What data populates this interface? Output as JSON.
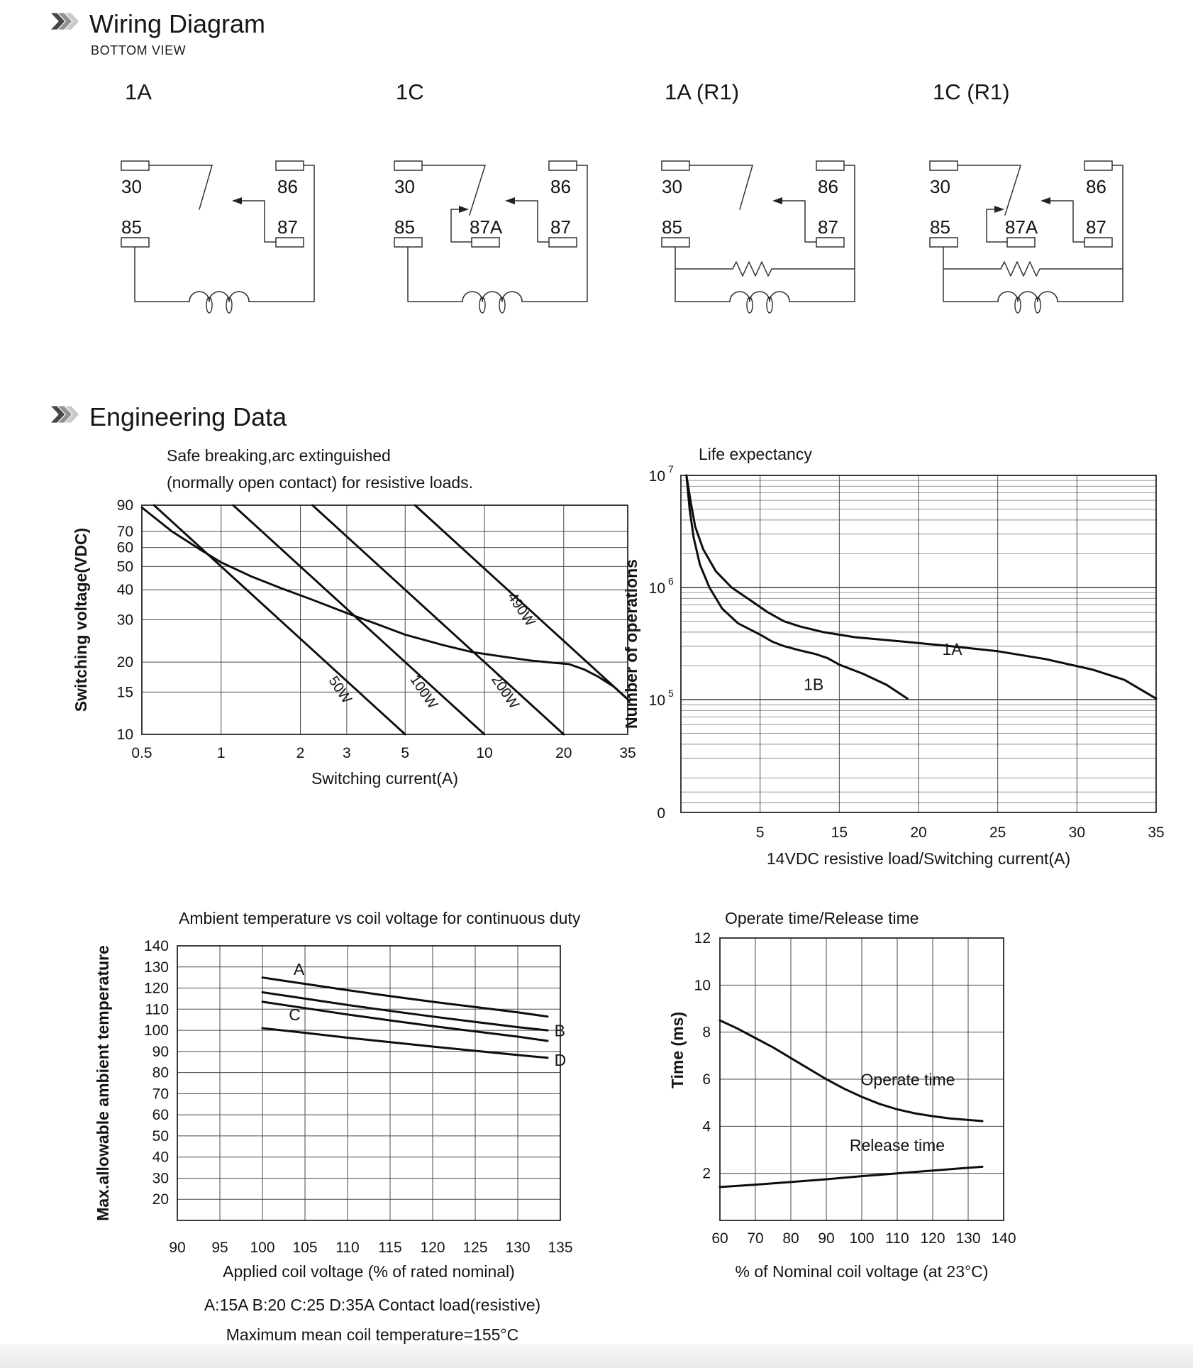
{
  "page": {
    "wiring_section": {
      "title": "Wiring Diagram",
      "subtitle": "BOTTOM VIEW"
    },
    "engineering_section": {
      "title": "Engineering Data"
    }
  },
  "wiring_diagrams": [
    {
      "label": "1A",
      "terminals": {
        "top_left": "30",
        "top_right": "86",
        "bottom_left": "85",
        "bottom_right": "87"
      },
      "middle_terminal": "",
      "has_resistor": false
    },
    {
      "label": "1C",
      "terminals": {
        "top_left": "30",
        "top_right": "86",
        "bottom_left": "85",
        "bottom_right": "87"
      },
      "middle_terminal": "87A",
      "has_resistor": false
    },
    {
      "label": "1A (R1)",
      "terminals": {
        "top_left": "30",
        "top_right": "86",
        "bottom_left": "85",
        "bottom_right": "87"
      },
      "middle_terminal": "",
      "has_resistor": true
    },
    {
      "label": "1C (R1)",
      "terminals": {
        "top_left": "30",
        "top_right": "86",
        "bottom_left": "85",
        "bottom_right": "87"
      },
      "middle_terminal": "87A",
      "has_resistor": true
    }
  ],
  "chart_data": [
    {
      "id": "safe-breaking",
      "type": "line",
      "title_lines": [
        "Safe breaking,arc extinguished",
        "(normally open contact) for resistive loads."
      ],
      "xlabel": "Switching current(A)",
      "ylabel": "Switching voltage(VDC)",
      "xscale": "log",
      "yscale": "log",
      "xlim": [
        0.5,
        35
      ],
      "ylim": [
        10,
        90
      ],
      "xticks": [
        0.5,
        1,
        2,
        3,
        5,
        10,
        20,
        35
      ],
      "yticks": [
        10,
        15,
        20,
        30,
        40,
        50,
        60,
        70,
        90
      ],
      "series": [
        {
          "name": "50W",
          "points": [
            [
              0.556,
              90
            ],
            [
              5,
              10
            ]
          ],
          "label_at": [
            2.55,
            16.8
          ],
          "label_rotate": 56
        },
        {
          "name": "100W",
          "points": [
            [
              1.111,
              90
            ],
            [
              10,
              10
            ]
          ],
          "label_at": [
            5.2,
            17.0
          ],
          "label_rotate": 56
        },
        {
          "name": "200W",
          "points": [
            [
              2.222,
              90
            ],
            [
              20,
              10
            ]
          ],
          "label_at": [
            10.6,
            17.0
          ],
          "label_rotate": 56
        },
        {
          "name": "490W",
          "points": [
            [
              5.444,
              90
            ],
            [
              35,
              14
            ]
          ],
          "label_at": [
            12.2,
            37.5
          ],
          "label_rotate": 56
        },
        {
          "name": "max switching limit",
          "show_label": false,
          "points": [
            [
              0.5,
              88
            ],
            [
              0.65,
              70
            ],
            [
              0.85,
              58
            ],
            [
              1,
              52
            ],
            [
              1.3,
              45.5
            ],
            [
              1.7,
              40.5
            ],
            [
              2.2,
              36.5
            ],
            [
              3,
              32
            ],
            [
              4,
              28.5
            ],
            [
              5,
              26
            ],
            [
              7,
              23.5
            ],
            [
              9,
              22
            ],
            [
              12,
              21
            ],
            [
              15,
              20.3
            ],
            [
              18,
              19.9
            ],
            [
              21,
              19.6
            ],
            [
              24,
              18.6
            ],
            [
              27,
              17.4
            ],
            [
              31,
              15.8
            ],
            [
              35,
              14
            ]
          ]
        }
      ]
    },
    {
      "id": "life-expectancy",
      "type": "line",
      "title": "Life expectancy",
      "xlabel": "14VDC resistive load/Switching current(A)",
      "ylabel": "Number of operations",
      "yscale": "log",
      "ytick_labels": [
        {
          "base": "10",
          "exp": "7",
          "value": 10000000
        },
        {
          "base": "10",
          "exp": "6",
          "value": 1000000
        },
        {
          "base": "10",
          "exp": "5",
          "value": 100000
        }
      ],
      "origin_label": "0",
      "xticks": [
        5,
        15,
        20,
        25,
        30,
        35
      ],
      "series": [
        {
          "name": "1A",
          "label_at": [
            21.5,
            250000
          ],
          "points": [
            [
              0.35,
              10000000
            ],
            [
              0.6,
              6000000
            ],
            [
              0.9,
              3500000
            ],
            [
              1.4,
              2200000
            ],
            [
              2.2,
              1400000
            ],
            [
              3.2,
              1000000
            ],
            [
              4.5,
              750000
            ],
            [
              6,
              600000
            ],
            [
              8,
              500000
            ],
            [
              10,
              450000
            ],
            [
              13,
              400000
            ],
            [
              16,
              360000
            ],
            [
              19,
              330000
            ],
            [
              22,
              300000
            ],
            [
              25,
              270000
            ],
            [
              28,
              230000
            ],
            [
              31,
              185000
            ],
            [
              33,
              150000
            ],
            [
              35,
              102000
            ]
          ]
        },
        {
          "name": "1B",
          "label_at": [
            10.5,
            122000
          ],
          "points": [
            [
              0.35,
              10000000
            ],
            [
              0.55,
              5000000
            ],
            [
              0.8,
              2800000
            ],
            [
              1.2,
              1600000
            ],
            [
              1.8,
              1000000
            ],
            [
              2.6,
              650000
            ],
            [
              3.6,
              480000
            ],
            [
              5,
              380000
            ],
            [
              6.5,
              330000
            ],
            [
              8,
              300000
            ],
            [
              10,
              275000
            ],
            [
              12,
              255000
            ],
            [
              13.5,
              235000
            ],
            [
              15,
              205000
            ],
            [
              16.5,
              170000
            ],
            [
              18,
              135000
            ],
            [
              19.3,
              102000
            ]
          ]
        }
      ]
    },
    {
      "id": "ambient-temperature",
      "type": "line",
      "title": "Ambient temperature vs coil voltage for continuous duty",
      "xlabel": "Applied coil voltage (% of rated nominal)",
      "ylabel": "Max.allowable ambient temperature",
      "xlim": [
        90,
        135
      ],
      "ylim": [
        10,
        140
      ],
      "xticks": [
        90,
        95,
        100,
        105,
        110,
        115,
        120,
        125,
        130,
        135
      ],
      "yticks": [
        20,
        30,
        40,
        50,
        60,
        70,
        80,
        90,
        100,
        110,
        120,
        130,
        140
      ],
      "series": [
        {
          "name": "A",
          "label_at": [
            104.3,
            128.5
          ],
          "label_anchor": "middle",
          "points": [
            [
              100,
              125
            ],
            [
              105,
              122
            ],
            [
              110,
              119
            ],
            [
              115,
              116.2
            ],
            [
              120,
              113.5
            ],
            [
              125,
              111
            ],
            [
              130,
              108.5
            ],
            [
              133.5,
              106.5
            ]
          ]
        },
        {
          "name": "B",
          "label_at": [
            134.3,
            99.5
          ],
          "label_anchor": "start",
          "points": [
            [
              100,
              118
            ],
            [
              105,
              115
            ],
            [
              110,
              112
            ],
            [
              115,
              109.2
            ],
            [
              120,
              106.5
            ],
            [
              125,
              104
            ],
            [
              130,
              101.5
            ],
            [
              133.5,
              100
            ]
          ]
        },
        {
          "name": "C",
          "label_at": [
            103.8,
            107
          ],
          "label_anchor": "middle",
          "points": [
            [
              100,
              113.5
            ],
            [
              105,
              110.5
            ],
            [
              110,
              107.5
            ],
            [
              115,
              104.7
            ],
            [
              120,
              102
            ],
            [
              125,
              99.5
            ],
            [
              130,
              97
            ],
            [
              133.5,
              95
            ]
          ]
        },
        {
          "name": "D",
          "label_at": [
            134.3,
            85.5
          ],
          "label_anchor": "start",
          "points": [
            [
              100,
              101
            ],
            [
              105,
              98.8
            ],
            [
              110,
              96.5
            ],
            [
              115,
              94.4
            ],
            [
              120,
              92.3
            ],
            [
              125,
              90.3
            ],
            [
              130,
              88.3
            ],
            [
              133.5,
              87
            ]
          ]
        }
      ],
      "notes": [
        "A:15A B:20 C:25 D:35A Contact load(resistive)",
        "Maximum mean coil temperature=155°C"
      ]
    },
    {
      "id": "operate-release-time",
      "type": "line",
      "title": "Operate time/Release time",
      "xlabel": "% of Nominal coil voltage (at 23°C)",
      "ylabel": "Time (ms)",
      "xlim": [
        60,
        140
      ],
      "ylim": [
        0,
        12
      ],
      "xticks": [
        60,
        70,
        80,
        90,
        100,
        110,
        120,
        130,
        140
      ],
      "yticks": [
        2,
        4,
        6,
        8,
        10,
        12
      ],
      "series": [
        {
          "name": "Operate time",
          "label_at": [
            113,
            5.75
          ],
          "label_anchor": "middle",
          "points": [
            [
              60,
              8.5
            ],
            [
              65,
              8.15
            ],
            [
              70,
              7.75
            ],
            [
              75,
              7.35
            ],
            [
              80,
              6.9
            ],
            [
              85,
              6.45
            ],
            [
              90,
              6.0
            ],
            [
              95,
              5.6
            ],
            [
              100,
              5.25
            ],
            [
              105,
              4.95
            ],
            [
              110,
              4.72
            ],
            [
              115,
              4.55
            ],
            [
              120,
              4.43
            ],
            [
              125,
              4.33
            ],
            [
              130,
              4.27
            ],
            [
              134,
              4.22
            ]
          ]
        },
        {
          "name": "Release time",
          "label_at": [
            110,
            2.95
          ],
          "label_anchor": "middle",
          "points": [
            [
              60,
              1.42
            ],
            [
              70,
              1.52
            ],
            [
              80,
              1.63
            ],
            [
              90,
              1.75
            ],
            [
              100,
              1.88
            ],
            [
              110,
              2.0
            ],
            [
              120,
              2.12
            ],
            [
              127,
              2.2
            ],
            [
              134,
              2.28
            ]
          ]
        }
      ]
    }
  ]
}
